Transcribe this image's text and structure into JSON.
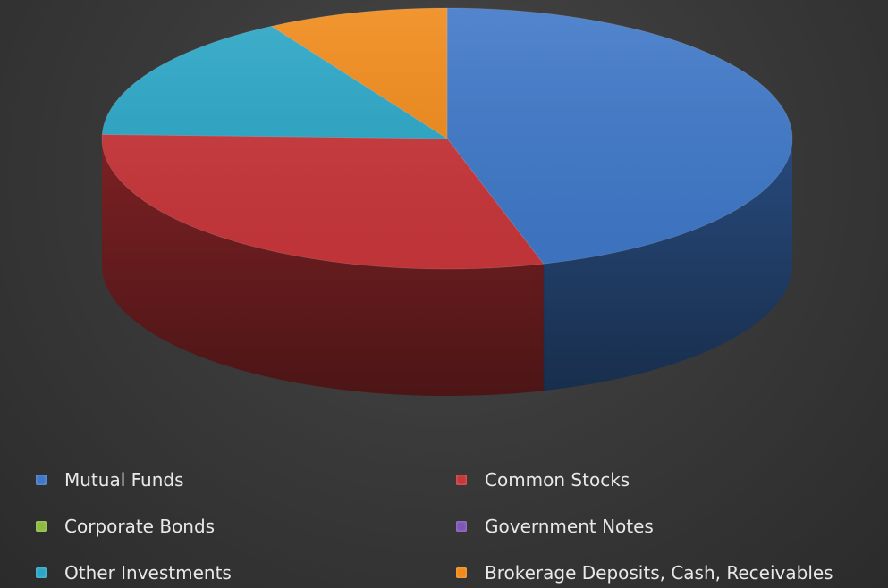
{
  "chart_data": {
    "type": "pie",
    "title": "",
    "slices": [
      {
        "label": "Mutual Funds",
        "value": 45.5,
        "color": "#3f78c8"
      },
      {
        "label": "Common Stocks",
        "value": 30.0,
        "color": "#c8363a"
      },
      {
        "label": "Corporate Bonds",
        "value": 0,
        "color": "#8dbb3f"
      },
      {
        "label": "Government Notes",
        "value": 0,
        "color": "#7e55b5"
      },
      {
        "label": "Other Investments",
        "value": 16.0,
        "color": "#2aa6c6"
      },
      {
        "label": "Brokerage Deposits, Cash, Receivables",
        "value": 8.5,
        "color": "#f08a1a"
      }
    ],
    "legend_position": "bottom"
  }
}
